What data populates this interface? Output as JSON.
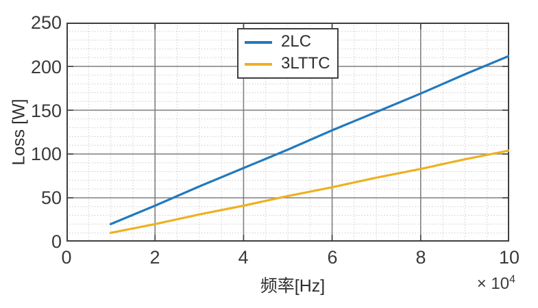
{
  "chart_data": {
    "type": "line",
    "title": "",
    "xlabel": "频率[Hz]",
    "ylabel": "Loss [W]",
    "x_axis_multiplier_base": "× 10",
    "x_axis_multiplier_exponent": "4",
    "xlim": [
      0,
      10
    ],
    "ylim": [
      0,
      250
    ],
    "xticks": [
      0,
      2,
      4,
      6,
      8,
      10
    ],
    "yticks": [
      0,
      50,
      100,
      150,
      200,
      250
    ],
    "xtick_labels": [
      "0",
      "2",
      "4",
      "6",
      "8",
      "10"
    ],
    "ytick_labels": [
      "0",
      "50",
      "100",
      "150",
      "200",
      "250"
    ],
    "x_minor_step": 0.5,
    "y_minor_step": 10,
    "grid": {
      "major": true,
      "minor": true
    },
    "legend_position": "top-center-inside",
    "x": [
      1,
      2,
      3,
      4,
      5,
      6,
      7,
      8,
      9,
      10
    ],
    "series": [
      {
        "name": "2LC",
        "color": "#2279BD",
        "values": [
          20,
          41,
          63,
          84,
          105,
          127,
          148,
          169,
          191,
          212
        ]
      },
      {
        "name": "3LTTC",
        "color": "#EDB120",
        "values": [
          10,
          20,
          31,
          41,
          52,
          62,
          73,
          83,
          94,
          104
        ]
      }
    ]
  },
  "colors": {
    "axis": "#3e3e3e",
    "major_grid": "#7f7f7f",
    "minor_grid": "#c9c9c9",
    "tick_text": "#3a3a3a",
    "background": "#ffffff"
  }
}
